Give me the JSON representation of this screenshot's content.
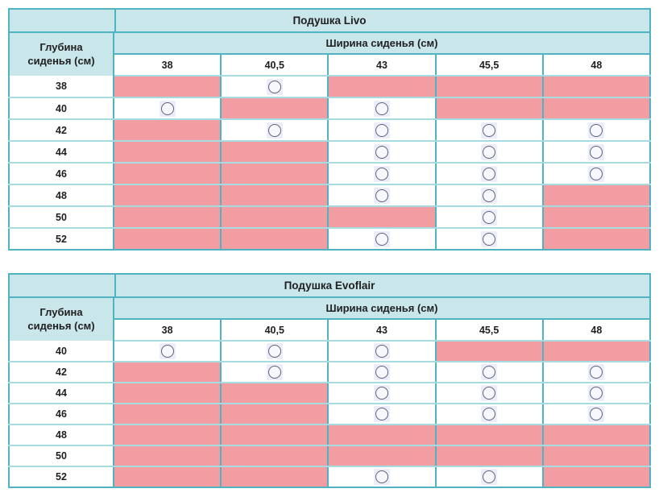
{
  "colors": {
    "header_bg": "#c9e6eb",
    "pink_unavailable": "#f29da1",
    "border_main": "#4fb3c2",
    "border_row": "#a6dbe1",
    "circle_border": "#60607a",
    "circle_fill": "#f7f7fe",
    "circle_halo": "#ebedf9",
    "text": "#1f1f1f"
  },
  "labels": {
    "depth_header": "Глубина сиденья (см)",
    "width_header": "Ширина сиденья (см)",
    "available_symbol": "circle-outline",
    "unavailable_symbol": "pink-fill"
  },
  "tables": [
    {
      "title": "Подушка Livo",
      "columns": [
        "38",
        "40,5",
        "43",
        "45,5",
        "48"
      ],
      "rows": [
        {
          "depth": "38",
          "cells": [
            "na",
            "ok",
            "na",
            "na",
            "na"
          ]
        },
        {
          "depth": "40",
          "cells": [
            "ok",
            "na",
            "ok",
            "na",
            "na"
          ]
        },
        {
          "depth": "42",
          "cells": [
            "na",
            "ok",
            "ok",
            "ok",
            "ok"
          ]
        },
        {
          "depth": "44",
          "cells": [
            "na",
            "na",
            "ok",
            "ok",
            "ok"
          ]
        },
        {
          "depth": "46",
          "cells": [
            "na",
            "na",
            "ok",
            "ok",
            "ok"
          ]
        },
        {
          "depth": "48",
          "cells": [
            "na",
            "na",
            "ok",
            "ok",
            "na"
          ]
        },
        {
          "depth": "50",
          "cells": [
            "na",
            "na",
            "na",
            "ok",
            "na"
          ]
        },
        {
          "depth": "52",
          "cells": [
            "na",
            "na",
            "ok",
            "ok",
            "na"
          ]
        }
      ]
    },
    {
      "title": "Подушка Evoflair",
      "columns": [
        "38",
        "40,5",
        "43",
        "45,5",
        "48"
      ],
      "rows": [
        {
          "depth": "40",
          "cells": [
            "ok",
            "ok",
            "ok",
            "na",
            "na"
          ]
        },
        {
          "depth": "42",
          "cells": [
            "na",
            "ok",
            "ok",
            "ok",
            "ok"
          ]
        },
        {
          "depth": "44",
          "cells": [
            "na",
            "na",
            "ok",
            "ok",
            "ok"
          ]
        },
        {
          "depth": "46",
          "cells": [
            "na",
            "na",
            "ok",
            "ok",
            "ok"
          ]
        },
        {
          "depth": "48",
          "cells": [
            "na",
            "na",
            "na",
            "na",
            "na"
          ]
        },
        {
          "depth": "50",
          "cells": [
            "na",
            "na",
            "na",
            "na",
            "na"
          ]
        },
        {
          "depth": "52",
          "cells": [
            "na",
            "na",
            "ok",
            "ok",
            "na"
          ]
        }
      ]
    }
  ]
}
